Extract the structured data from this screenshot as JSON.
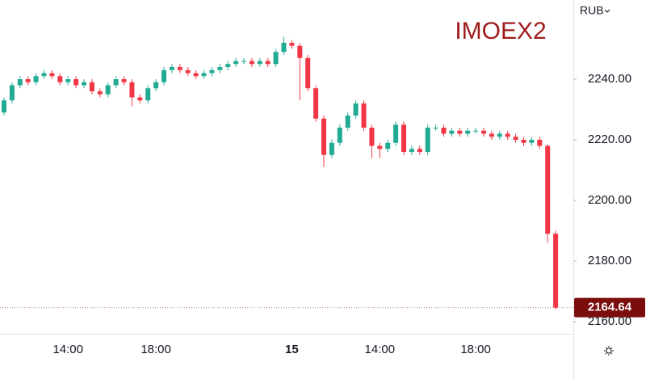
{
  "chart_data": {
    "type": "candlestick",
    "title": "IMOEX2",
    "currency": "RUB",
    "title_color": "#a01c1c",
    "up_color": "#22ab94",
    "down_color": "#f23645",
    "last_price_color": "#7b0d0d",
    "categories": [
      null,
      null,
      null,
      null,
      null,
      null,
      null,
      null,
      "14:00",
      null,
      null,
      null,
      null,
      null,
      null,
      null,
      null,
      null,
      null,
      "18:00",
      null,
      null,
      null,
      null,
      null,
      null,
      null,
      null,
      null,
      null,
      null,
      null,
      null,
      null,
      null,
      null,
      "15",
      null,
      null,
      null,
      null,
      null,
      null,
      null,
      null,
      null,
      null,
      "14:00",
      null,
      null,
      null,
      null,
      null,
      null,
      null,
      null,
      null,
      null,
      null,
      "18:00",
      null,
      null,
      null,
      null,
      null,
      null,
      null,
      null,
      null,
      null
    ],
    "open": [
      2229,
      2233,
      2238,
      2240,
      2239,
      2241,
      2242,
      2241,
      2239,
      2240,
      2238,
      2239,
      2236,
      2235,
      2238,
      2240,
      2239,
      2234,
      2233,
      2237,
      2239,
      2243,
      2244,
      2243,
      2242,
      2241,
      2242,
      2243,
      2244,
      2245,
      2246,
      2246,
      2245,
      2246,
      2245,
      2249,
      2252,
      2251,
      2247,
      2237,
      2227,
      2215,
      2219,
      2224,
      2228,
      2232,
      2224,
      2218,
      2217,
      2219,
      2225,
      2216,
      2217,
      2216,
      2224,
      2224,
      2222,
      2223,
      2222,
      2223,
      2223,
      2222,
      2221,
      2222,
      2221,
      2220,
      2219,
      2220,
      2218,
      2189
    ],
    "high": [
      2234,
      2239,
      2241,
      2241,
      2242,
      2243,
      2243,
      2242,
      2241,
      2241,
      2240,
      2240,
      2237,
      2239,
      2241,
      2241,
      2240,
      2235,
      2238,
      2240,
      2244,
      2245,
      2245,
      2244,
      2243,
      2243,
      2244,
      2245,
      2246,
      2247,
      2247,
      2247,
      2247,
      2247,
      2250,
      2254,
      2253,
      2252,
      2248,
      2238,
      2228,
      2220,
      2225,
      2229,
      2233,
      2233,
      2225,
      2219,
      2220,
      2226,
      2226,
      2218,
      2218,
      2225,
      2225,
      2225,
      2224,
      2224,
      2224,
      2224,
      2224,
      2223,
      2223,
      2223,
      2222,
      2221,
      2221,
      2221,
      2218.5,
      2190
    ],
    "low": [
      2228,
      2232,
      2237,
      2238,
      2238,
      2240,
      2240,
      2238,
      2238,
      2237,
      2237,
      2235,
      2234,
      2234,
      2237,
      2238,
      2231,
      2232,
      2232,
      2236,
      2238,
      2242,
      2242,
      2241,
      2240,
      2240,
      2241,
      2242,
      2243,
      2244,
      2245,
      2244,
      2244,
      2244,
      2244,
      2248,
      2250,
      2233,
      2236,
      2226,
      2211,
      2214,
      2218,
      2223,
      2227,
      2223,
      2214,
      2214,
      2216,
      2218,
      2215,
      2215,
      2215,
      2215,
      2223,
      2221,
      2221,
      2221,
      2221,
      2222,
      2221,
      2220,
      2220,
      2220,
      2219,
      2218,
      2218,
      2217,
      2186,
      2164
    ],
    "close": [
      2233,
      2238,
      2240,
      2239,
      2241,
      2242,
      2241,
      2239,
      2240,
      2238,
      2239,
      2236,
      2235,
      2238,
      2240,
      2239,
      2234,
      2233,
      2237,
      2239,
      2243,
      2244,
      2243,
      2242,
      2241,
      2242,
      2243,
      2244,
      2245,
      2246,
      2246,
      2245,
      2246,
      2245,
      2249,
      2252,
      2251,
      2247,
      2237,
      2227,
      2215,
      2219,
      2224,
      2228,
      2232,
      2224,
      2218,
      2217,
      2219,
      2225,
      2216,
      2217,
      2216,
      2224,
      2224,
      2222,
      2223,
      2222,
      2223,
      2223,
      2222,
      2221,
      2222,
      2221,
      2220,
      2219,
      2220,
      2218,
      2189,
      2164.64
    ],
    "ylim": [
      2156,
      2266.13
    ],
    "yticks": [
      {
        "value": 2160,
        "label": "2160.00"
      },
      {
        "value": 2180,
        "label": "2180.00"
      },
      {
        "value": 2200,
        "label": "2200.00"
      },
      {
        "value": 2220,
        "label": "2220.00"
      },
      {
        "value": 2240,
        "label": "2240.00"
      }
    ],
    "bold_categories": [
      "15"
    ]
  }
}
